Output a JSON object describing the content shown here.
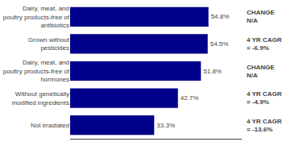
{
  "chart_data": {
    "type": "bar",
    "orientation": "horizontal",
    "categories": [
      "Dairy, meat, and\npoultry products-free of\nantibiotics",
      "Grown without\npesticides",
      "Dairy, meat, and\npoultry products-free of\nhormones",
      "Without genetically\nmodified ingredients",
      "Not irradiated"
    ],
    "values": [
      54.8,
      54.5,
      51.8,
      42.7,
      33.3
    ],
    "value_labels": [
      "54.8%",
      "54.5%",
      "51.8%",
      "42.7%",
      "33.3%"
    ],
    "data_labels": true,
    "annotations": [
      "CHANGE\nN/A",
      "4 YR CAGR\n= -6.9%",
      "CHANGE\nN/A",
      "4 YR CAGR\n= -4.9%",
      "4 YR CAGR\n= -13.6%"
    ],
    "color": "#00008B",
    "xlim": [
      0,
      68
    ],
    "tick_labels": "y",
    "grid": false
  }
}
